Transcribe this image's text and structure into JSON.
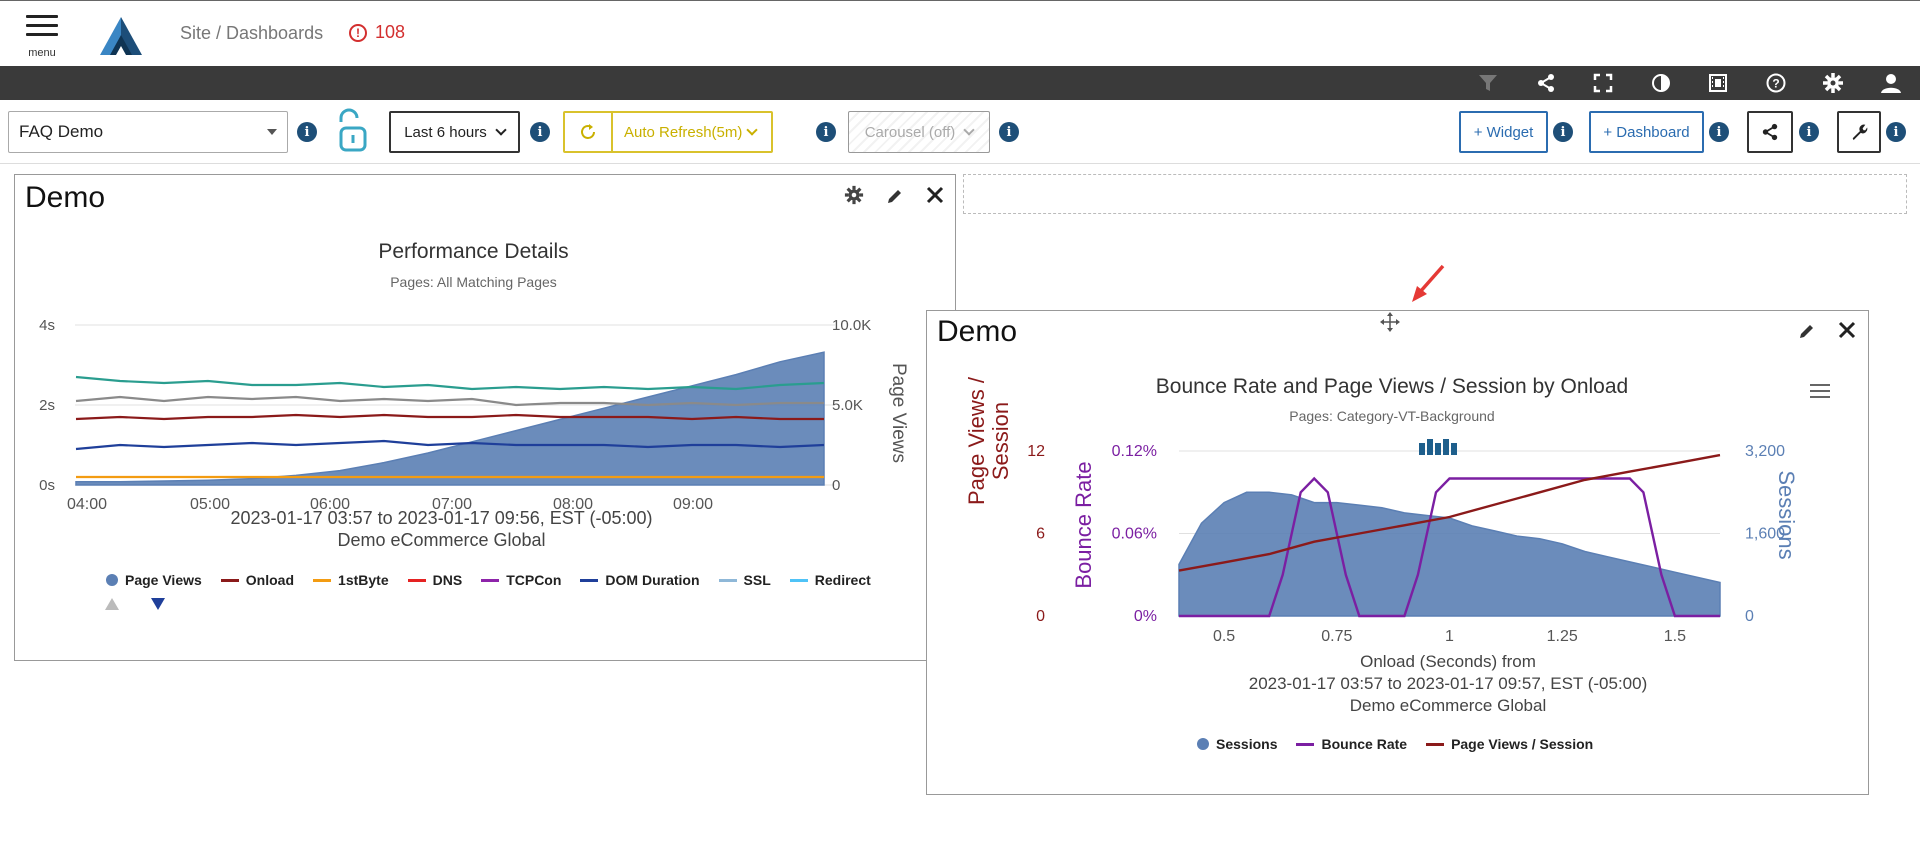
{
  "header": {
    "menu_label": "menu",
    "breadcrumb": "Site / Dashboards",
    "alert_count": "108",
    "alert_icon": "alert-circle-icon"
  },
  "toolbar_icons": [
    "filter-icon",
    "share-icon",
    "fullscreen-icon",
    "contrast-icon",
    "film-icon",
    "help-icon",
    "gear-icon",
    "user-icon"
  ],
  "controls": {
    "dashboard_select": "FAQ Demo",
    "time_range": "Last 6 hours",
    "auto_refresh": "Auto Refresh(5m)",
    "carousel": "Carousel (off)",
    "add_widget": "+ Widget",
    "add_dashboard": "+ Dashboard"
  },
  "widget1": {
    "title": "Demo",
    "chart_title": "Performance Details",
    "chart_subtitle": "Pages: All Matching Pages",
    "footnote_line1": "2023-01-17 03:57 to 2023-01-17 09:56, EST (-05:00)",
    "footnote_line2": "Demo eCommerce Global",
    "legend": [
      "Page Views",
      "Onload",
      "1stByte",
      "DNS",
      "TCPCon",
      "DOM Duration",
      "SSL",
      "Redirect"
    ]
  },
  "widget2": {
    "title": "Demo",
    "chart_title": "Bounce Rate and Page Views / Session by Onload",
    "chart_subtitle": "Pages: Category-VT-Background",
    "xlabel_line1": "Onload (Seconds) from",
    "xlabel_line2": "2023-01-17 03:57 to 2023-01-17 09:57, EST (-05:00)",
    "xlabel_line3": "Demo eCommerce Global",
    "ylabel_left1_a": "Page Views /",
    "ylabel_left1_b": "Session",
    "ylabel_left2": "Bounce Rate",
    "ylabel_right": "Sessions",
    "legend": [
      "Sessions",
      "Bounce Rate",
      "Page Views / Session"
    ]
  },
  "chart_data": [
    {
      "type": "line",
      "title": "Performance Details",
      "subtitle": "Pages: All Matching Pages",
      "x_ticks": [
        "04:00",
        "05:00",
        "06:00",
        "07:00",
        "08:00",
        "09:00"
      ],
      "y_left_ticks": [
        "0s",
        "2s",
        "4s"
      ],
      "y_right_ticks": [
        "0",
        "5.0K",
        "10.0K"
      ],
      "ylabel_right": "Page Views",
      "series": [
        {
          "name": "Page Views",
          "kind": "area",
          "color": "#5b7fb4",
          "values": [
            200,
            200,
            250,
            300,
            400,
            600,
            900,
            1400,
            2000,
            2700,
            3400,
            4100,
            4800,
            5500,
            6200,
            6900,
            7700,
            8300
          ]
        },
        {
          "name": "DOM Duration",
          "color": "#1f3f9a",
          "values": [
            0.9,
            1.0,
            0.95,
            1.0,
            1.05,
            1.0,
            1.05,
            1.1,
            1.0,
            1.05,
            1.0,
            1.0,
            1.0,
            0.95,
            1.0,
            1.0,
            0.95,
            1.0
          ]
        },
        {
          "name": "Onload",
          "color": "#8b1a1a",
          "values": [
            1.65,
            1.7,
            1.65,
            1.7,
            1.7,
            1.75,
            1.7,
            1.75,
            1.7,
            1.7,
            1.75,
            1.7,
            1.7,
            1.7,
            1.65,
            1.7,
            1.65,
            1.65
          ]
        },
        {
          "name": "SSL",
          "color": "#8a8a8a",
          "values": [
            2.1,
            2.2,
            2.1,
            2.2,
            2.15,
            2.2,
            2.1,
            2.15,
            2.1,
            2.15,
            2.0,
            2.05,
            2.05,
            2.0,
            2.05,
            2.0,
            2.05,
            2.05
          ]
        },
        {
          "name": "Redirect",
          "color": "#2a9d8f",
          "values": [
            2.7,
            2.6,
            2.55,
            2.6,
            2.5,
            2.5,
            2.55,
            2.45,
            2.5,
            2.4,
            2.45,
            2.4,
            2.45,
            2.4,
            2.45,
            2.4,
            2.5,
            2.55
          ]
        },
        {
          "name": "1stByte",
          "color": "#f39c12",
          "values": [
            0.2,
            0.2,
            0.2,
            0.2,
            0.2,
            0.2,
            0.2,
            0.2,
            0.2,
            0.2,
            0.2,
            0.2,
            0.2,
            0.2,
            0.2,
            0.2,
            0.2,
            0.2
          ]
        }
      ],
      "legend": [
        "Page Views",
        "Onload",
        "1stByte",
        "DNS",
        "TCPCon",
        "DOM Duration",
        "SSL",
        "Redirect"
      ]
    },
    {
      "type": "area",
      "title": "Bounce Rate and Page Views / Session by Onload",
      "subtitle": "Pages: Category-VT-Background",
      "x_ticks": [
        "0.5",
        "0.75",
        "1",
        "1.25",
        "1.5"
      ],
      "y_pv_ticks": [
        "0",
        "6",
        "12"
      ],
      "y_bounce_ticks": [
        "0%",
        "0.06%",
        "0.12%"
      ],
      "y_sessions_ticks": [
        "0",
        "1,600",
        "3,200"
      ],
      "series": [
        {
          "name": "Sessions",
          "color": "#5b7fb4",
          "x": [
            0.4,
            0.45,
            0.5,
            0.55,
            0.6,
            0.65,
            0.7,
            0.75,
            0.8,
            0.85,
            0.9,
            0.95,
            1.0,
            1.05,
            1.1,
            1.15,
            1.2,
            1.25,
            1.3,
            1.35,
            1.4,
            1.45,
            1.5,
            1.55,
            1.6
          ],
          "values": [
            1000,
            1800,
            2200,
            2400,
            2400,
            2350,
            2200,
            2200,
            2150,
            2100,
            2000,
            1950,
            1900,
            1750,
            1650,
            1550,
            1500,
            1400,
            1250,
            1150,
            1050,
            950,
            850,
            750,
            650
          ]
        },
        {
          "name": "Bounce Rate",
          "color": "#7b1fa2",
          "x": [
            0.4,
            0.6,
            0.63,
            0.67,
            0.7,
            0.73,
            0.77,
            0.8,
            0.9,
            0.93,
            0.97,
            1.0,
            1.4,
            1.43,
            1.47,
            1.5,
            1.6
          ],
          "values": [
            0,
            0,
            0.03,
            0.09,
            0.1,
            0.09,
            0.03,
            0,
            0,
            0.03,
            0.09,
            0.1,
            0.1,
            0.09,
            0.03,
            0,
            0
          ]
        },
        {
          "name": "Page Views / Session",
          "color": "#8b1a1a",
          "x": [
            0.4,
            0.5,
            0.6,
            0.7,
            0.8,
            0.9,
            1.0,
            1.1,
            1.2,
            1.3,
            1.4,
            1.5,
            1.6
          ],
          "values": [
            3.3,
            3.9,
            4.5,
            5.4,
            6.0,
            6.6,
            7.2,
            8.1,
            9.0,
            9.9,
            10.5,
            11.1,
            11.7
          ]
        }
      ]
    }
  ]
}
